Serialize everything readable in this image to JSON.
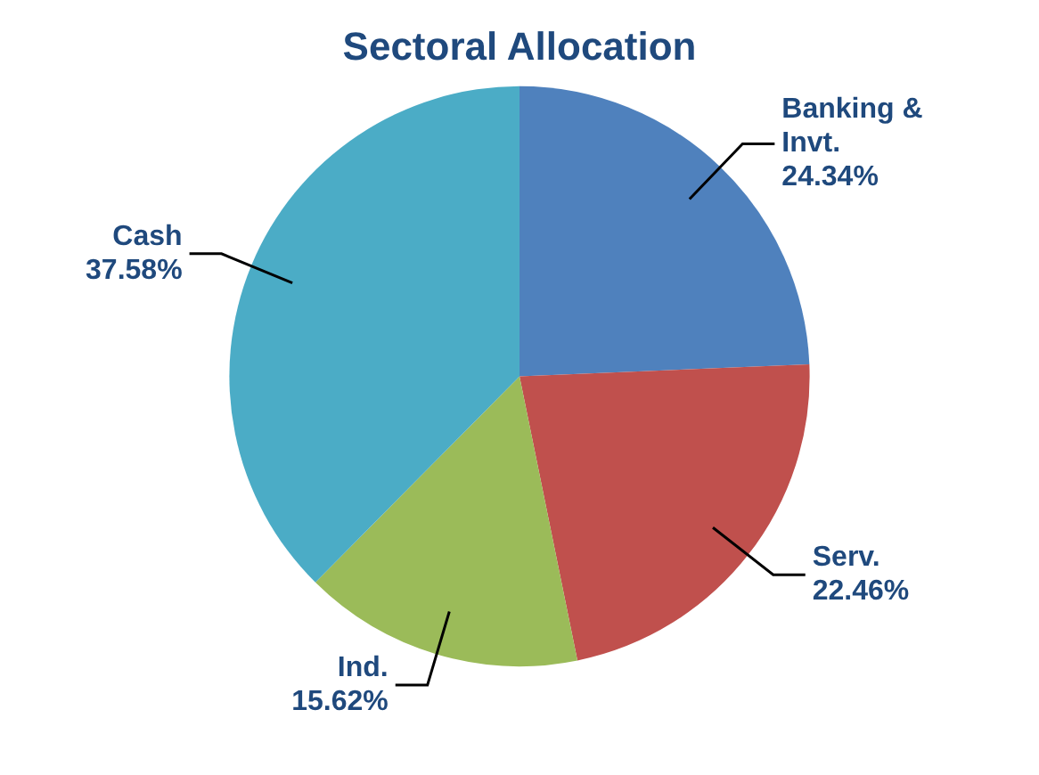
{
  "chart_data": {
    "type": "pie",
    "title": "Sectoral Allocation",
    "categories": [
      "Banking & Invt.",
      "Serv.",
      "Ind.",
      "Cash"
    ],
    "values": [
      24.34,
      22.46,
      15.62,
      37.58
    ],
    "value_labels": [
      "24.34%",
      "22.46%",
      "15.62%",
      "37.58%"
    ],
    "colors": [
      "#4f81bd",
      "#c0504d",
      "#9bbb59",
      "#4bacc6"
    ],
    "legend": false
  }
}
